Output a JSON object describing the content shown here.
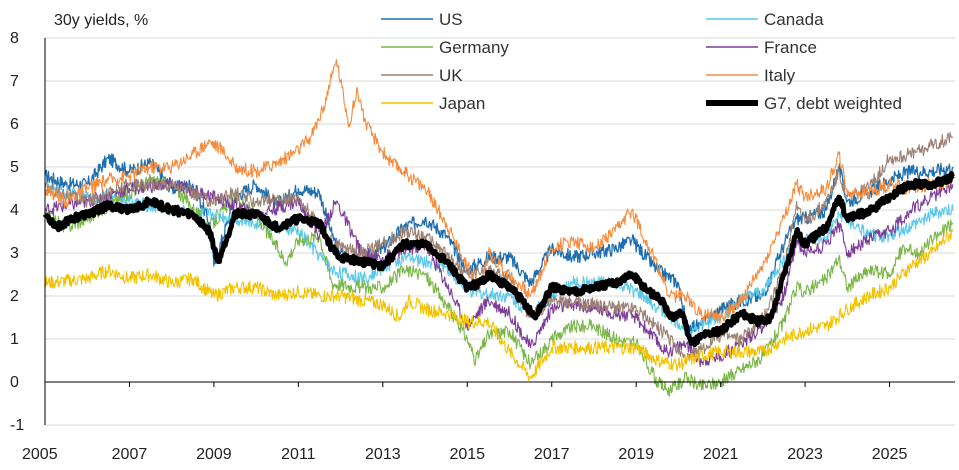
{
  "chart_data": {
    "type": "line",
    "title": "30y yields, %",
    "xlabel": "",
    "ylabel": "",
    "xlim": [
      2005.0,
      2026.55
    ],
    "ylim": [
      -1,
      8
    ],
    "x_ticks": [
      2005,
      2007,
      2009,
      2011,
      2013,
      2015,
      2017,
      2019,
      2021,
      2023,
      2025
    ],
    "x_tick_labels": [
      "2005",
      "2007",
      "2009",
      "2011",
      "2013",
      "2015",
      "2017",
      "2019",
      "2021",
      "2023",
      "2025"
    ],
    "y_ticks": [
      -1,
      0,
      1,
      2,
      3,
      4,
      5,
      6,
      7,
      8
    ],
    "y_tick_labels": [
      "-1",
      "0",
      "1",
      "2",
      "3",
      "4",
      "5",
      "6",
      "7",
      "8"
    ],
    "grid": "horizontal",
    "legend_position": "top",
    "series": [
      {
        "name": "US",
        "color": "#1f6fae",
        "width": 1.3,
        "x": [
          2005.0,
          2005.5,
          2006.0,
          2006.5,
          2007.0,
          2007.5,
          2008.0,
          2008.5,
          2008.9,
          2009.0,
          2009.5,
          2010.0,
          2010.5,
          2011.0,
          2011.5,
          2011.8,
          2012.0,
          2012.5,
          2013.0,
          2013.5,
          2014.0,
          2014.5,
          2015.0,
          2015.5,
          2016.0,
          2016.5,
          2017.0,
          2017.5,
          2018.0,
          2018.5,
          2018.9,
          2019.5,
          2020.0,
          2020.2,
          2020.5,
          2021.0,
          2021.5,
          2022.0,
          2022.5,
          2022.8,
          2023.0,
          2023.5,
          2023.8,
          2024.0,
          2024.5,
          2025.0,
          2025.5,
          2026.0,
          2026.5
        ],
        "values": [
          4.8,
          4.6,
          4.6,
          5.2,
          4.9,
          5.1,
          4.5,
          4.6,
          3.7,
          2.7,
          4.3,
          4.6,
          4.1,
          4.5,
          4.4,
          3.4,
          3.0,
          2.8,
          3.1,
          3.6,
          3.8,
          3.4,
          2.6,
          2.9,
          2.9,
          2.3,
          3.1,
          2.9,
          3.0,
          3.1,
          3.3,
          2.6,
          2.3,
          1.3,
          1.3,
          1.7,
          1.9,
          2.0,
          3.2,
          3.8,
          3.8,
          4.0,
          5.0,
          4.2,
          4.4,
          4.7,
          4.9,
          4.9,
          5.0
        ]
      },
      {
        "name": "Canada",
        "color": "#5bc8ea",
        "width": 1.1,
        "x": [
          2005.0,
          2006.0,
          2007.0,
          2008.0,
          2009.0,
          2010.0,
          2011.0,
          2011.8,
          2012.5,
          2013.5,
          2014.5,
          2015.0,
          2016.0,
          2016.5,
          2017.5,
          2018.5,
          2019.0,
          2019.7,
          2020.2,
          2021.0,
          2021.5,
          2022.0,
          2022.8,
          2023.5,
          2023.8,
          2024.5,
          2025.0,
          2025.5,
          2026.0,
          2026.5
        ],
        "values": [
          4.5,
          4.3,
          4.2,
          4.0,
          3.9,
          3.7,
          3.5,
          2.6,
          2.4,
          2.9,
          2.7,
          2.1,
          2.0,
          1.6,
          2.3,
          2.3,
          2.1,
          1.6,
          1.2,
          1.5,
          1.9,
          2.1,
          3.3,
          3.3,
          3.9,
          3.4,
          3.4,
          3.6,
          3.9,
          4.0
        ]
      },
      {
        "name": "Germany",
        "color": "#7ab648",
        "width": 1.1,
        "x": [
          2005.0,
          2005.5,
          2006.0,
          2007.0,
          2007.5,
          2008.0,
          2008.9,
          2009.5,
          2010.0,
          2010.7,
          2011.0,
          2011.5,
          2011.8,
          2012.5,
          2013.0,
          2013.5,
          2014.0,
          2014.5,
          2015.0,
          2015.2,
          2015.5,
          2016.0,
          2016.5,
          2017.0,
          2017.5,
          2018.0,
          2018.5,
          2019.0,
          2019.5,
          2019.8,
          2020.2,
          2020.5,
          2021.0,
          2021.5,
          2022.0,
          2022.5,
          2022.8,
          2023.0,
          2023.5,
          2023.8,
          2024.0,
          2024.5,
          2025.0,
          2025.3,
          2025.7,
          2026.0,
          2026.5
        ],
        "values": [
          3.9,
          3.6,
          3.8,
          4.4,
          4.7,
          4.6,
          3.6,
          4.3,
          3.9,
          2.8,
          3.3,
          3.4,
          2.3,
          2.2,
          2.2,
          2.6,
          2.5,
          1.8,
          1.0,
          0.5,
          1.1,
          1.2,
          0.4,
          1.0,
          1.3,
          1.3,
          1.0,
          0.9,
          0.0,
          -0.2,
          0.1,
          -0.1,
          0.0,
          0.3,
          0.6,
          1.4,
          2.2,
          2.1,
          2.4,
          2.9,
          2.2,
          2.6,
          2.5,
          3.1,
          3.0,
          3.3,
          3.7
        ]
      },
      {
        "name": "France",
        "color": "#7c3c97",
        "width": 1.1,
        "x": [
          2005.0,
          2006.0,
          2007.0,
          2008.0,
          2009.0,
          2010.0,
          2011.0,
          2011.5,
          2011.9,
          2012.5,
          2013.0,
          2014.0,
          2014.5,
          2015.0,
          2015.5,
          2016.0,
          2016.5,
          2017.0,
          2017.5,
          2018.0,
          2019.0,
          2019.7,
          2020.2,
          2020.5,
          2021.0,
          2021.5,
          2022.0,
          2022.5,
          2022.8,
          2023.0,
          2023.5,
          2023.8,
          2024.0,
          2024.5,
          2025.0,
          2025.5,
          2026.0,
          2026.5
        ],
        "values": [
          4.0,
          4.2,
          4.5,
          4.6,
          4.3,
          3.9,
          4.2,
          3.4,
          4.2,
          3.0,
          2.9,
          3.2,
          2.3,
          1.3,
          1.9,
          1.6,
          0.8,
          1.7,
          1.8,
          1.7,
          1.5,
          0.7,
          0.9,
          0.5,
          0.6,
          0.9,
          1.3,
          2.0,
          3.3,
          3.0,
          3.2,
          3.7,
          3.0,
          3.3,
          3.5,
          4.0,
          4.3,
          4.6
        ]
      },
      {
        "name": "UK",
        "color": "#9c8072",
        "width": 1.1,
        "x": [
          2005.0,
          2006.0,
          2007.0,
          2008.0,
          2008.9,
          2009.5,
          2010.0,
          2011.0,
          2011.8,
          2012.5,
          2013.0,
          2013.5,
          2014.0,
          2015.0,
          2015.5,
          2016.0,
          2016.5,
          2017.0,
          2018.0,
          2019.0,
          2019.7,
          2020.2,
          2021.0,
          2021.5,
          2022.0,
          2022.5,
          2022.8,
          2023.0,
          2023.5,
          2023.8,
          2024.0,
          2024.5,
          2025.0,
          2025.5,
          2026.0,
          2026.5
        ],
        "values": [
          4.5,
          4.2,
          4.6,
          4.6,
          4.2,
          4.4,
          4.2,
          4.3,
          3.2,
          3.0,
          3.2,
          3.5,
          3.4,
          2.5,
          2.6,
          2.4,
          1.5,
          1.9,
          1.8,
          1.7,
          1.1,
          0.5,
          1.1,
          1.0,
          1.5,
          2.6,
          4.2,
          3.7,
          4.2,
          4.9,
          4.3,
          4.5,
          5.2,
          5.3,
          5.5,
          5.7
        ]
      },
      {
        "name": "Italy",
        "color": "#f58b3c",
        "width": 1.1,
        "x": [
          2005.0,
          2005.5,
          2006.0,
          2006.5,
          2007.0,
          2007.5,
          2008.0,
          2008.5,
          2008.9,
          2009.2,
          2009.5,
          2010.0,
          2010.5,
          2011.0,
          2011.3,
          2011.6,
          2011.9,
          2012.2,
          2012.4,
          2012.6,
          2012.9,
          2013.2,
          2013.5,
          2014.0,
          2014.5,
          2015.0,
          2015.3,
          2015.5,
          2016.0,
          2016.5,
          2017.0,
          2017.5,
          2018.0,
          2018.5,
          2018.9,
          2019.5,
          2019.8,
          2020.2,
          2020.5,
          2021.0,
          2021.5,
          2022.0,
          2022.5,
          2022.8,
          2023.0,
          2023.5,
          2023.8,
          2024.0,
          2024.5,
          2025.0,
          2025.5,
          2026.0,
          2026.5
        ],
        "values": [
          4.5,
          4.2,
          4.5,
          4.7,
          4.8,
          5.0,
          5.0,
          5.3,
          5.6,
          5.4,
          5.0,
          4.9,
          5.1,
          5.4,
          5.7,
          6.4,
          7.5,
          6.0,
          6.8,
          6.0,
          5.5,
          5.1,
          4.9,
          4.5,
          3.7,
          2.7,
          2.2,
          3.0,
          2.5,
          2.0,
          3.1,
          3.3,
          3.1,
          3.5,
          4.0,
          2.7,
          2.0,
          2.0,
          1.6,
          1.5,
          1.9,
          2.7,
          3.8,
          4.6,
          4.3,
          4.5,
          5.3,
          4.4,
          4.4,
          4.6,
          4.5,
          4.6,
          4.7
        ]
      },
      {
        "name": "Japan",
        "color": "#f2c200",
        "width": 1.1,
        "x": [
          2005.0,
          2006.0,
          2006.5,
          2007.0,
          2007.5,
          2008.0,
          2008.5,
          2009.0,
          2009.5,
          2010.0,
          2010.5,
          2011.0,
          2011.5,
          2012.0,
          2012.5,
          2013.0,
          2013.4,
          2013.6,
          2014.0,
          2014.5,
          2015.0,
          2015.5,
          2016.0,
          2016.5,
          2017.0,
          2018.0,
          2019.0,
          2019.5,
          2020.0,
          2020.5,
          2021.0,
          2021.5,
          2022.0,
          2022.5,
          2023.0,
          2023.5,
          2024.0,
          2024.5,
          2025.0,
          2025.5,
          2026.0,
          2026.5
        ],
        "values": [
          2.3,
          2.4,
          2.6,
          2.4,
          2.5,
          2.3,
          2.4,
          2.0,
          2.2,
          2.2,
          2.0,
          2.1,
          2.0,
          2.0,
          1.9,
          1.8,
          1.5,
          1.9,
          1.7,
          1.6,
          1.4,
          1.4,
          0.7,
          0.1,
          0.8,
          0.8,
          0.8,
          0.5,
          0.4,
          0.6,
          0.7,
          0.7,
          0.7,
          1.0,
          1.2,
          1.3,
          1.7,
          2.0,
          2.2,
          2.7,
          3.0,
          3.5
        ]
      },
      {
        "name": "G7, debt weighted",
        "color": "#000000",
        "width": 5,
        "x": [
          2005.0,
          2005.3,
          2005.6,
          2006.0,
          2006.5,
          2007.0,
          2007.5,
          2008.0,
          2008.5,
          2008.9,
          2009.1,
          2009.5,
          2010.0,
          2010.5,
          2011.0,
          2011.5,
          2011.8,
          2012.0,
          2012.5,
          2013.0,
          2013.5,
          2014.0,
          2014.5,
          2015.0,
          2015.3,
          2015.5,
          2016.0,
          2016.3,
          2016.6,
          2017.0,
          2017.5,
          2018.0,
          2018.5,
          2018.9,
          2019.3,
          2019.6,
          2019.8,
          2020.1,
          2020.3,
          2020.6,
          2021.0,
          2021.5,
          2021.9,
          2022.2,
          2022.5,
          2022.8,
          2023.0,
          2023.5,
          2023.8,
          2024.0,
          2024.3,
          2024.6,
          2025.0,
          2025.3,
          2025.6,
          2026.0,
          2026.3,
          2026.5
        ],
        "values": [
          3.9,
          3.6,
          3.8,
          3.9,
          4.1,
          4.0,
          4.2,
          4.0,
          3.9,
          3.5,
          2.8,
          3.9,
          3.9,
          3.6,
          3.8,
          3.7,
          3.1,
          2.9,
          2.8,
          2.7,
          3.2,
          3.2,
          2.8,
          2.2,
          2.3,
          2.5,
          2.2,
          1.9,
          1.5,
          2.2,
          2.1,
          2.2,
          2.3,
          2.5,
          2.1,
          1.9,
          1.5,
          1.6,
          0.9,
          1.1,
          1.2,
          1.6,
          1.4,
          1.5,
          2.5,
          3.5,
          3.2,
          3.6,
          4.3,
          3.8,
          3.9,
          4.0,
          4.3,
          4.5,
          4.6,
          4.6,
          4.7,
          4.8
        ]
      }
    ]
  }
}
